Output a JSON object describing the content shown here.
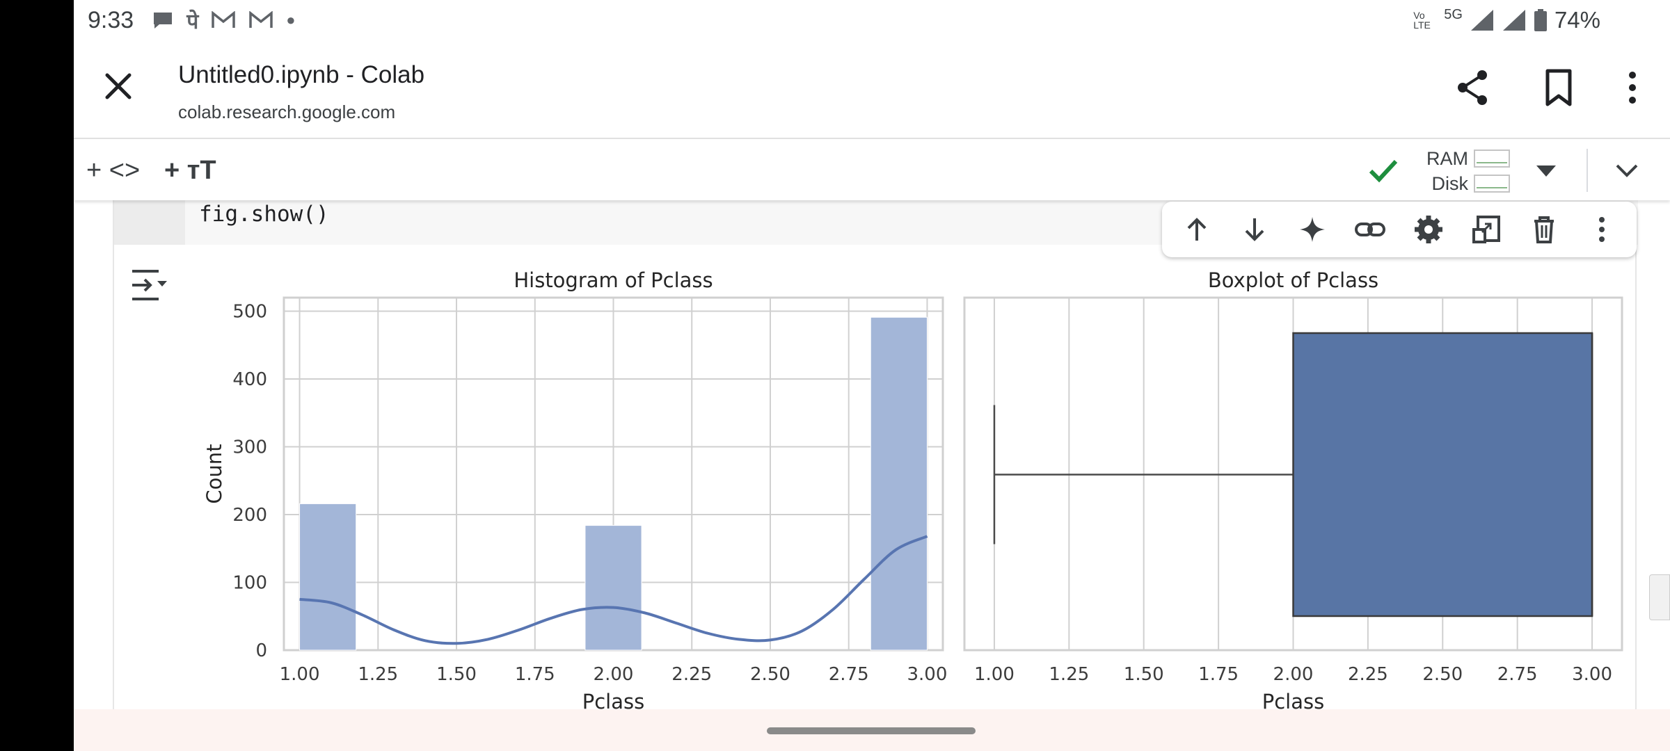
{
  "status_bar": {
    "time": "9:33",
    "notification_icons": [
      "chat-bubble-icon",
      "pe-icon",
      "gmail-icon",
      "gmail-icon",
      "dot-icon"
    ],
    "network": "5G",
    "volte": "Vo LTE",
    "battery": "74%"
  },
  "browser": {
    "title": "Untitled0.ipynb - Colab",
    "url": "colab.research.google.com"
  },
  "toolbar": {
    "add_code": "+ <>",
    "add_text": "+ ᴛT",
    "ram_label": "RAM",
    "disk_label": "Disk",
    "connected_color": "#1e8e3e"
  },
  "cell": {
    "code_line": "fig.show()"
  },
  "chart_data": [
    {
      "type": "bar",
      "title": "Histogram of Pclass",
      "xlabel": "Pclass",
      "ylabel": "Count",
      "xlim": [
        0.95,
        3.05
      ],
      "ylim": [
        0,
        520
      ],
      "xticks": [
        "1.00",
        "1.25",
        "1.50",
        "1.75",
        "2.00",
        "2.25",
        "2.50",
        "2.75",
        "3.00"
      ],
      "yticks": [
        "0",
        "100",
        "200",
        "300",
        "400",
        "500"
      ],
      "bins": [
        {
          "x0": 1.0,
          "x1": 1.18,
          "count": 216
        },
        {
          "x0": 1.91,
          "x1": 2.09,
          "count": 184
        },
        {
          "x0": 2.82,
          "x1": 3.0,
          "count": 491
        }
      ],
      "kde": [
        [
          1.0,
          75
        ],
        [
          1.1,
          70
        ],
        [
          1.2,
          52
        ],
        [
          1.3,
          30
        ],
        [
          1.4,
          14
        ],
        [
          1.5,
          10
        ],
        [
          1.6,
          16
        ],
        [
          1.7,
          30
        ],
        [
          1.8,
          47
        ],
        [
          1.9,
          60
        ],
        [
          2.0,
          63
        ],
        [
          2.1,
          55
        ],
        [
          2.2,
          40
        ],
        [
          2.3,
          25
        ],
        [
          2.4,
          16
        ],
        [
          2.5,
          15
        ],
        [
          2.6,
          28
        ],
        [
          2.7,
          60
        ],
        [
          2.8,
          105
        ],
        [
          2.9,
          148
        ],
        [
          3.0,
          168
        ]
      ],
      "bar_color": "#a3b6d8",
      "line_color": "#5875b1"
    },
    {
      "type": "boxplot",
      "title": "Boxplot of Pclass",
      "xlabel": "Pclass",
      "xlim": [
        0.9,
        3.1
      ],
      "xticks": [
        "1.00",
        "1.25",
        "1.50",
        "1.75",
        "2.00",
        "2.25",
        "2.50",
        "2.75",
        "3.00"
      ],
      "whisker_low": 1.0,
      "q1": 2.0,
      "median": 3.0,
      "q3": 3.0,
      "box_color": "#5875a5"
    }
  ]
}
